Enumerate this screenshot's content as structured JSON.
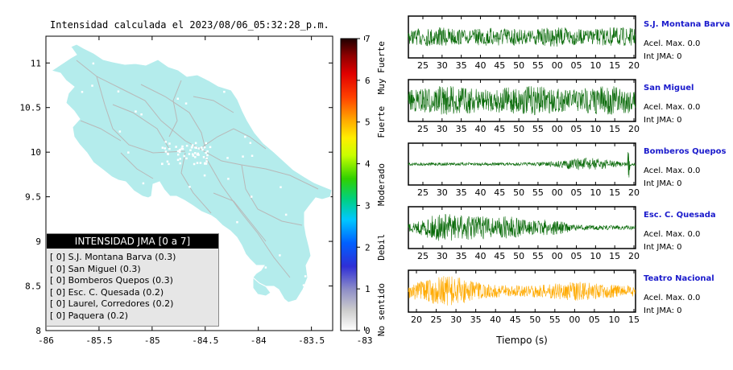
{
  "title": "Intensidad calculada el 2023/08/06_05:32:28_p.m.",
  "colors": {
    "land": "#b4ecec",
    "roads": "#b8b8b8",
    "trace_green": "#0a6b0a",
    "trace_orange": "#ffaa00",
    "station_label": "#1a1acc"
  },
  "map": {
    "x_ticks": [
      "-86",
      "-85.5",
      "-85",
      "-84.5",
      "-84",
      "-83.5",
      "-83"
    ],
    "y_ticks": [
      "11",
      "10.5",
      "10",
      "9.5",
      "9",
      "8.5",
      "8"
    ],
    "x_range": [
      -86,
      -83.3
    ],
    "y_range": [
      8,
      11.3
    ]
  },
  "colorbar": {
    "ticks": [
      "0",
      "1",
      "2",
      "3",
      "4",
      "5",
      "6",
      "7"
    ],
    "range": [
      0,
      7
    ],
    "categories": [
      "No sentido",
      "Debil",
      "Moderado",
      "Fuerte",
      "Muy Fuerte"
    ]
  },
  "legend": {
    "title": "INTENSIDAD JMA [0 a 7]",
    "items": [
      "[ 0]  S.J. Montana Barva (0.3)",
      "[ 0]  San Miguel (0.3)",
      "[ 0]  Bomberos Quepos (0.3)",
      "[ 0]  Esc. C. Quesada (0.2)",
      "[ 0]  Laurel, Corredores (0.2)",
      "[ 0]  Paquera (0.2)"
    ]
  },
  "chart_data": {
    "type": "line",
    "xlabel": "Tiempo (s)",
    "series": [
      {
        "name": "S.J. Montana Barva",
        "accel": "Acel. Max. 0.0",
        "jma": "Int JMA: 0",
        "ticks": [
          "25",
          "30",
          "35",
          "40",
          "45",
          "50",
          "55",
          "00",
          "05",
          "10",
          "15",
          "20"
        ]
      },
      {
        "name": "San Miguel",
        "accel": "Acel. Max. 0.0",
        "jma": "Int JMA: 0",
        "ticks": [
          "25",
          "30",
          "35",
          "40",
          "45",
          "50",
          "55",
          "00",
          "05",
          "10",
          "15",
          "20"
        ]
      },
      {
        "name": "Bomberos Quepos",
        "accel": "Acel. Max. 0.0",
        "jma": "Int JMA: 0",
        "ticks": [
          "25",
          "30",
          "35",
          "40",
          "45",
          "50",
          "55",
          "00",
          "05",
          "10",
          "15",
          "20"
        ]
      },
      {
        "name": "Esc. C. Quesada",
        "accel": "Acel. Max. 0.0",
        "jma": "Int JMA: 0",
        "ticks": [
          "25",
          "30",
          "35",
          "40",
          "45",
          "50",
          "55",
          "00",
          "05",
          "10",
          "15",
          "20"
        ]
      },
      {
        "name": "Teatro Nacional",
        "accel": "Acel. Max. 0.0",
        "jma": "Int JMA: 0",
        "ticks": [
          "20",
          "25",
          "30",
          "35",
          "40",
          "45",
          "50",
          "55",
          "00",
          "05",
          "10",
          "15"
        ]
      }
    ]
  }
}
